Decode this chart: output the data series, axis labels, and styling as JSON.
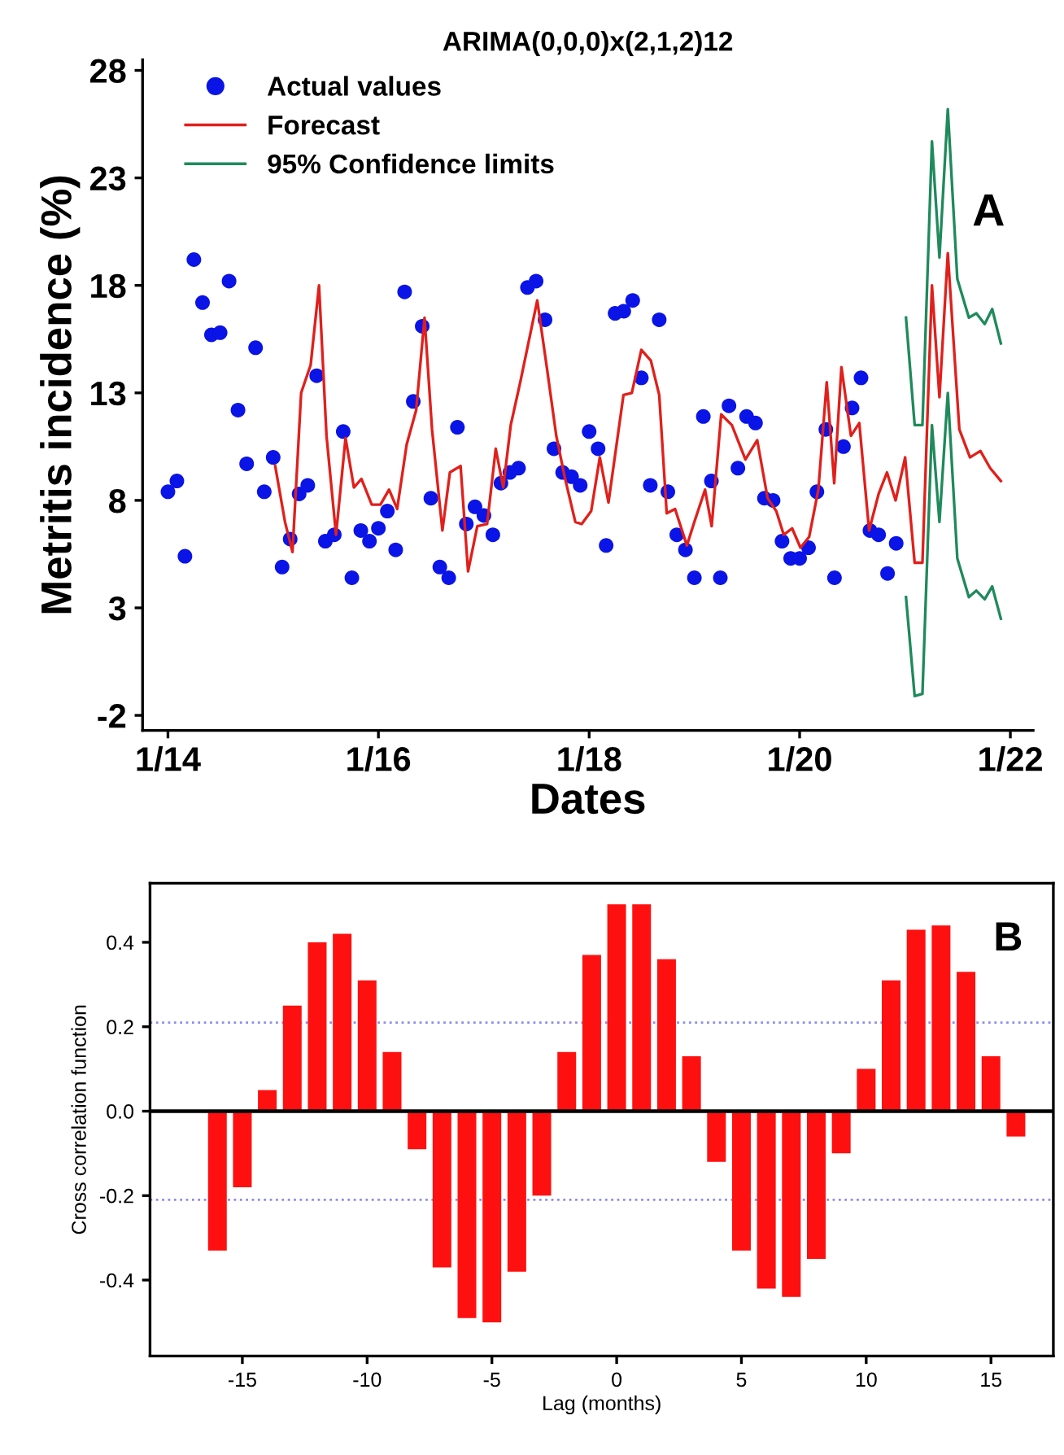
{
  "chart_data": [
    {
      "type": "line",
      "title": "ARIMA(0,0,0)x(2,1,2)12",
      "xlabel": "Dates",
      "ylabel": "Metritis incidence (%)",
      "xlim": [
        "2013-10-05",
        "2022-03-21"
      ],
      "xticks": [
        {
          "value": "2014-01-01",
          "label": "1/14"
        },
        {
          "value": "2016-01-01",
          "label": "1/16"
        },
        {
          "value": "2018-01-01",
          "label": "1/18"
        },
        {
          "value": "2020-01-01",
          "label": "1/20"
        },
        {
          "value": "2022-01-01",
          "label": "1/22"
        }
      ],
      "ylim": [
        -2.7,
        28.5
      ],
      "yticks": [
        -2,
        3,
        8,
        13,
        18,
        23,
        28
      ],
      "legend": "top left",
      "annotations": [
        "A"
      ],
      "series": [
        {
          "name": "Actual values",
          "type": "scatter",
          "marker": "circle",
          "color": "#0a14e6",
          "x": [
            "2014-01",
            "2014-02",
            "2014-03",
            "2014-04",
            "2014-05",
            "2014-06",
            "2014-07",
            "2014-08",
            "2014-09",
            "2014-10",
            "2014-11",
            "2014-12",
            "2015-01",
            "2015-02",
            "2015-03",
            "2015-04",
            "2015-05",
            "2015-06",
            "2015-07",
            "2015-08",
            "2015-09",
            "2015-10",
            "2015-11",
            "2015-12",
            "2016-01",
            "2016-02",
            "2016-03",
            "2016-04",
            "2016-05",
            "2016-06",
            "2016-07",
            "2016-08",
            "2016-09",
            "2016-10",
            "2016-11",
            "2016-12",
            "2017-01",
            "2017-02",
            "2017-03",
            "2017-04",
            "2017-05",
            "2017-06",
            "2017-07",
            "2017-08",
            "2017-09",
            "2017-10",
            "2017-11",
            "2017-12",
            "2018-01",
            "2018-02",
            "2018-03",
            "2018-04",
            "2018-05",
            "2018-06",
            "2018-07",
            "2018-08",
            "2018-09",
            "2018-10",
            "2018-11",
            "2018-12",
            "2019-01",
            "2019-02",
            "2019-03",
            "2019-04",
            "2019-05",
            "2019-06",
            "2019-07",
            "2019-08",
            "2019-09",
            "2019-10",
            "2019-11",
            "2019-12",
            "2020-01",
            "2020-02",
            "2020-03",
            "2020-04",
            "2020-05",
            "2020-06",
            "2020-07",
            "2020-08",
            "2020-09",
            "2020-10",
            "2020-11",
            "2020-12"
          ],
          "values": [
            8.4,
            8.9,
            5.4,
            19.2,
            17.2,
            15.7,
            15.8,
            18.2,
            12.2,
            9.7,
            15.1,
            8.4,
            10.0,
            4.9,
            6.2,
            8.3,
            8.7,
            13.8,
            6.1,
            6.4,
            11.2,
            4.4,
            6.6,
            6.1,
            6.7,
            7.5,
            5.7,
            17.7,
            12.6,
            16.1,
            8.1,
            4.9,
            4.4,
            11.4,
            6.9,
            7.7,
            7.3,
            6.4,
            8.8,
            9.3,
            9.5,
            17.9,
            18.2,
            16.4,
            10.4,
            9.3,
            9.1,
            8.7,
            11.2,
            10.4,
            5.9,
            16.7,
            16.8,
            17.3,
            13.7,
            8.7,
            16.4,
            8.4,
            6.4,
            5.7,
            4.4,
            11.9,
            8.9,
            4.4,
            12.4,
            9.5,
            11.9,
            11.6,
            8.1,
            8.0,
            6.1,
            5.3,
            5.3,
            5.8,
            8.4,
            11.3,
            4.4,
            10.5,
            12.3,
            13.7,
            6.6,
            6.4,
            4.6,
            6.0
          ]
        },
        {
          "name": "Forecast",
          "type": "line",
          "color": "#e0201c",
          "x": [
            "2015-01-08",
            "2015-02-11",
            "2015-03-09",
            "2015-04-08",
            "2015-05-11",
            "2015-06-09",
            "2015-07-05",
            "2015-08-07",
            "2015-09-09",
            "2015-10-08",
            "2015-11-03",
            "2015-12-09",
            "2016-01-08",
            "2016-02-07",
            "2016-03-06",
            "2016-04-08",
            "2016-05-11",
            "2016-06-09",
            "2016-07-05",
            "2016-08-10",
            "2016-09-05",
            "2016-10-12",
            "2016-11-07",
            "2016-12-09",
            "2017-01-12",
            "2017-02-11",
            "2017-03-09",
            "2017-04-04",
            "2017-05-07",
            "2017-07-05",
            "2017-08-07",
            "2017-09-09",
            "2017-10-08",
            "2017-11-14",
            "2017-12-06",
            "2018-01-08",
            "2018-02-07",
            "2018-03-09",
            "2018-04-30",
            "2018-05-29",
            "2018-07-01",
            "2018-08-03",
            "2018-09-01",
            "2018-09-27",
            "2018-10-26",
            "2018-12-06",
            "2019-01-01",
            "2019-02-07",
            "2019-03-02",
            "2019-04-04",
            "2019-05-11",
            "2019-06-27",
            "2019-08-07",
            "2019-09-12",
            "2019-10-12",
            "2019-11-07",
            "2019-12-06",
            "2020-01-04",
            "2020-02-03",
            "2020-03-06",
            "2020-04-04",
            "2020-04-30",
            "2020-05-25",
            "2020-06-27",
            "2020-07-26",
            "2020-08-29",
            "2020-10-01",
            "2020-10-30",
            "2020-11-29",
            "2021-01-01",
            "2021-02-03",
            "2021-03-02",
            "2021-04-04",
            "2021-04-30",
            "2021-05-29",
            "2021-07-08",
            "2021-08-14",
            "2021-09-19",
            "2021-10-23",
            "2021-11-29"
          ],
          "values": [
            9.6,
            7.0,
            5.6,
            13.0,
            14.3,
            18.0,
            11.0,
            6.4,
            10.9,
            8.6,
            9.0,
            7.8,
            7.8,
            8.5,
            7.6,
            10.6,
            12.2,
            16.5,
            11.3,
            6.6,
            9.3,
            9.6,
            4.7,
            6.8,
            6.9,
            10.4,
            8.6,
            11.5,
            13.5,
            17.3,
            14.2,
            11.0,
            9.1,
            7.0,
            6.9,
            7.5,
            10.0,
            7.9,
            12.9,
            13.0,
            15.0,
            14.5,
            12.9,
            7.4,
            7.6,
            5.9,
            7.0,
            8.5,
            6.8,
            12.0,
            11.5,
            9.9,
            10.8,
            8.1,
            7.5,
            6.4,
            6.7,
            5.8,
            6.3,
            8.5,
            13.5,
            8.8,
            14.2,
            11.0,
            11.6,
            6.6,
            8.3,
            9.3,
            8.0,
            10.0,
            5.1,
            5.1,
            18.0,
            12.8,
            19.5,
            11.3,
            10.0,
            10.3,
            9.5,
            8.9
          ]
        },
        {
          "name": "95% Confidence limits",
          "type": "line",
          "color": "#1f8a5c",
          "x": [
            "2021-01-04",
            "2021-02-03",
            "2021-03-02",
            "2021-04-04",
            "2021-04-30",
            "2021-05-29",
            "2021-07-01",
            "2021-08-10",
            "2021-09-05",
            "2021-10-04",
            "2021-10-30",
            "2021-11-29"
          ],
          "values": [
            16.5,
            11.5,
            11.5,
            24.7,
            19.3,
            26.2,
            18.3,
            16.5,
            16.7,
            16.2,
            16.9,
            15.3
          ]
        },
        {
          "type": "line",
          "color": "#1f8a5c",
          "x": [
            "2021-01-04",
            "2021-02-03",
            "2021-03-02",
            "2021-04-04",
            "2021-04-30",
            "2021-05-29",
            "2021-07-01",
            "2021-08-10",
            "2021-09-05",
            "2021-10-04",
            "2021-10-30",
            "2021-11-29"
          ],
          "values": [
            3.5,
            -1.1,
            -1.0,
            11.5,
            7.0,
            13.0,
            5.3,
            3.5,
            3.8,
            3.4,
            4.0,
            2.5
          ]
        }
      ]
    },
    {
      "type": "bar",
      "xlabel": "Lag (months)",
      "ylabel": "Cross correlation function",
      "color": "#ff1010",
      "x": [
        -16,
        -15,
        -14,
        -13,
        -12,
        -11,
        -10,
        -9,
        -8,
        -7,
        -6,
        -5,
        -4,
        -3,
        -2,
        -1,
        0,
        1,
        2,
        3,
        4,
        5,
        6,
        7,
        8,
        9,
        10,
        11,
        12,
        13,
        14,
        15,
        16
      ],
      "values": [
        -0.33,
        -0.18,
        0.05,
        0.25,
        0.4,
        0.42,
        0.31,
        0.14,
        -0.09,
        -0.37,
        -0.49,
        -0.5,
        -0.38,
        -0.2,
        0.14,
        0.37,
        0.49,
        0.49,
        0.36,
        0.13,
        -0.12,
        -0.33,
        -0.42,
        -0.44,
        -0.35,
        -0.1,
        0.1,
        0.31,
        0.43,
        0.44,
        0.33,
        0.13,
        -0.06
      ],
      "xlim": [
        -18.7,
        17.5
      ],
      "xticks": [
        -15,
        -10,
        -5,
        0,
        5,
        10,
        15
      ],
      "ylim": [
        -0.58,
        0.54
      ],
      "yticks": [
        -0.4,
        -0.2,
        {
          "value": 0,
          "label": "0.0"
        },
        0.2,
        0.4
      ],
      "annotations": [
        "B"
      ],
      "ref_lines": [
        {
          "axis": "y",
          "value": 0,
          "color": "#000000",
          "line_style": "solid"
        },
        {
          "axis": "y",
          "value": 0.21,
          "color": "#8c8cf0",
          "line_style": "dotted"
        },
        {
          "axis": "y",
          "value": -0.21,
          "color": "#8c8cf0",
          "line_style": "dotted"
        }
      ]
    }
  ]
}
